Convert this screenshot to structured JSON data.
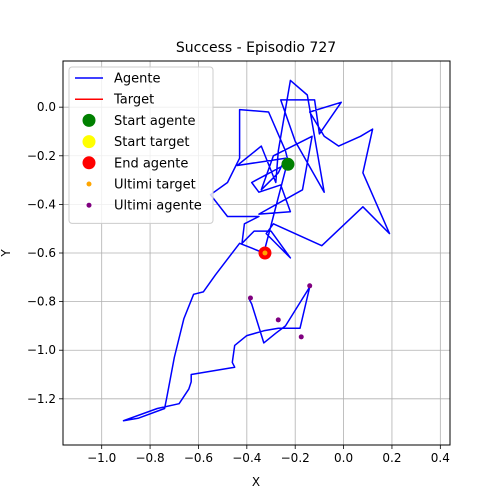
{
  "chart_data": {
    "type": "line",
    "title": "Success - Episodio 727",
    "xlabel": "X",
    "ylabel": "Y",
    "xlim": [
      -1.16,
      0.44
    ],
    "ylim": [
      -1.39,
      0.19
    ],
    "grid": true,
    "legend_position": "top-left",
    "x_ticks": [
      -1.0,
      -0.8,
      -0.6,
      -0.4,
      -0.2,
      0.0,
      0.2,
      0.4
    ],
    "x_tick_labels": [
      "−1.0",
      "−0.8",
      "−0.6",
      "−0.4",
      "−0.2",
      "0.0",
      "0.2",
      "0.4"
    ],
    "y_ticks": [
      0.0,
      -0.2,
      -0.4,
      -0.6,
      -0.8,
      -1.0,
      -1.2
    ],
    "y_tick_labels": [
      "0.0",
      "−0.2",
      "−0.4",
      "−0.6",
      "−0.8",
      "−1.0",
      "−1.2"
    ],
    "legend": [
      {
        "label": "Agente",
        "kind": "line",
        "color": "#0000ff"
      },
      {
        "label": "Target",
        "kind": "line",
        "color": "#ff0000"
      },
      {
        "label": "Start agente",
        "kind": "marker",
        "color": "#008000",
        "size": "large"
      },
      {
        "label": "Start target",
        "kind": "marker",
        "color": "#ffff00",
        "size": "large"
      },
      {
        "label": "End agente",
        "kind": "marker",
        "color": "#ff0000",
        "size": "large"
      },
      {
        "label": "Ultimi target",
        "kind": "marker",
        "color": "#ffa500",
        "size": "small"
      },
      {
        "label": "Ultimi agente",
        "kind": "marker",
        "color": "#800080",
        "size": "small"
      }
    ],
    "series": [
      {
        "name": "Agente",
        "color": "#0000ff",
        "points": [
          [
            -0.23,
            -0.23
          ],
          [
            -0.38,
            -0.31
          ],
          [
            -0.35,
            -0.35
          ],
          [
            -0.26,
            -0.32
          ],
          [
            -0.22,
            -0.43
          ],
          [
            -0.35,
            -0.44
          ],
          [
            -0.17,
            -0.34
          ],
          [
            -0.13,
            -0.12
          ],
          [
            -0.29,
            -0.2
          ],
          [
            -0.34,
            -0.34
          ],
          [
            -0.27,
            -0.27
          ],
          [
            -0.24,
            -0.21
          ],
          [
            -0.44,
            -0.24
          ],
          [
            -0.34,
            -0.16
          ],
          [
            -0.28,
            -0.31
          ],
          [
            -0.27,
            -0.18
          ],
          [
            -0.22,
            0.11
          ],
          [
            -0.15,
            0.05
          ],
          [
            -0.08,
            -0.35
          ],
          [
            -0.2,
            -0.14
          ],
          [
            -0.26,
            0.03
          ],
          [
            -0.12,
            0.03
          ],
          [
            -0.1,
            -0.11
          ],
          [
            -0.01,
            0.02
          ],
          [
            -0.14,
            -0.02
          ],
          [
            -0.08,
            -0.12
          ],
          [
            -0.02,
            -0.16
          ],
          [
            0.07,
            -0.12
          ],
          [
            0.12,
            -0.09
          ],
          [
            0.08,
            -0.27
          ],
          [
            0.19,
            -0.52
          ],
          [
            0.08,
            -0.41
          ],
          [
            -0.09,
            -0.57
          ],
          [
            -0.29,
            -0.48
          ],
          [
            -0.32,
            -0.52
          ],
          [
            -0.22,
            -0.62
          ],
          [
            -0.3,
            -0.51
          ],
          [
            -0.37,
            -0.51
          ],
          [
            -0.42,
            -0.56
          ],
          [
            -0.41,
            -0.48
          ],
          [
            -0.35,
            -0.45
          ],
          [
            -0.48,
            -0.45
          ],
          [
            -0.55,
            -0.36
          ],
          [
            -0.48,
            -0.31
          ],
          [
            -0.43,
            -0.21
          ],
          [
            -0.43,
            -0.01
          ],
          [
            -0.31,
            -0.02
          ],
          [
            -0.24,
            -0.18
          ],
          [
            -0.23,
            -0.22
          ],
          [
            -0.33,
            -0.6
          ],
          [
            -0.38,
            -0.58
          ],
          [
            -0.43,
            -0.56
          ],
          [
            -0.53,
            -0.69
          ],
          [
            -0.58,
            -0.76
          ],
          [
            -0.62,
            -0.77
          ],
          [
            -0.66,
            -0.87
          ],
          [
            -0.7,
            -1.03
          ],
          [
            -0.73,
            -1.19
          ],
          [
            -0.74,
            -1.24
          ],
          [
            -0.85,
            -1.28
          ],
          [
            -0.91,
            -1.29
          ],
          [
            -0.77,
            -1.24
          ],
          [
            -0.68,
            -1.22
          ],
          [
            -0.64,
            -1.16
          ],
          [
            -0.63,
            -1.13
          ],
          [
            -0.63,
            -1.1
          ],
          [
            -0.45,
            -1.07
          ],
          [
            -0.46,
            -1.05
          ],
          [
            -0.45,
            -0.98
          ],
          [
            -0.4,
            -0.94
          ],
          [
            -0.33,
            -0.92
          ],
          [
            -0.27,
            -0.91
          ],
          [
            -0.18,
            -0.91
          ],
          [
            -0.14,
            -0.74
          ],
          [
            -0.24,
            -0.9
          ],
          [
            -0.28,
            -0.93
          ],
          [
            -0.33,
            -0.97
          ],
          [
            -0.38,
            -0.81
          ],
          [
            -0.39,
            -0.79
          ]
        ]
      }
    ],
    "markers": [
      {
        "name": "Start agente",
        "x": -0.23,
        "y": -0.235,
        "color": "#008000",
        "size": "large"
      },
      {
        "name": "End agente",
        "x": -0.325,
        "y": -0.6,
        "color": "#ff0000",
        "size": "large"
      },
      {
        "name": "Ultimi target",
        "x": -0.325,
        "y": -0.6,
        "color": "#ffa500",
        "size": "small"
      },
      {
        "name": "Ultimi agente",
        "x": -0.385,
        "y": -0.785,
        "color": "#800080",
        "size": "small"
      },
      {
        "name": "Ultimi agente",
        "x": -0.14,
        "y": -0.735,
        "color": "#800080",
        "size": "small"
      },
      {
        "name": "Ultimi agente",
        "x": -0.27,
        "y": -0.875,
        "color": "#800080",
        "size": "small"
      },
      {
        "name": "Ultimi agente",
        "x": -0.175,
        "y": -0.945,
        "color": "#800080",
        "size": "small"
      }
    ]
  }
}
